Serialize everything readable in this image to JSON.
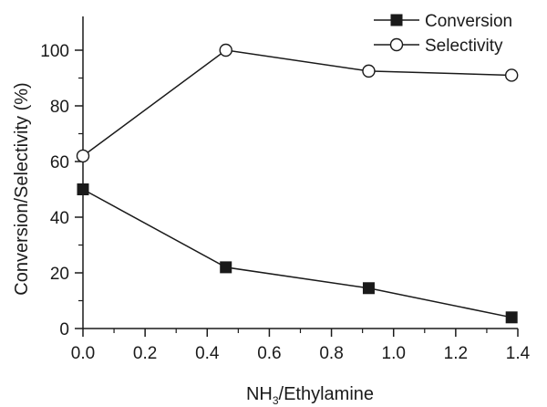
{
  "chart_data": {
    "type": "line",
    "x": [
      0.0,
      0.46,
      0.92,
      1.38
    ],
    "series": [
      {
        "name": "Conversion",
        "marker": "filled-square",
        "values": [
          50,
          22,
          14.5,
          4
        ]
      },
      {
        "name": "Selectivity",
        "marker": "open-circle",
        "values": [
          62,
          100,
          92.5,
          91
        ]
      }
    ],
    "xlabel_main": "NH",
    "xlabel_sub": "3",
    "xlabel_rest": "/Ethylamine",
    "ylabel": "Conversion/Selectivity (%)",
    "xlim": [
      0.0,
      1.4
    ],
    "ylim": [
      0,
      100
    ],
    "xticks": [
      "0.0",
      "0.2",
      "0.4",
      "0.6",
      "0.8",
      "1.0",
      "1.2",
      "1.4"
    ],
    "yticks": [
      "0",
      "20",
      "40",
      "60",
      "80",
      "100"
    ],
    "grid": false,
    "legend_position": "top-right",
    "colors": {
      "line": "#1a1a1a",
      "marker_fill": "#1a1a1a",
      "background": "#ffffff"
    }
  }
}
